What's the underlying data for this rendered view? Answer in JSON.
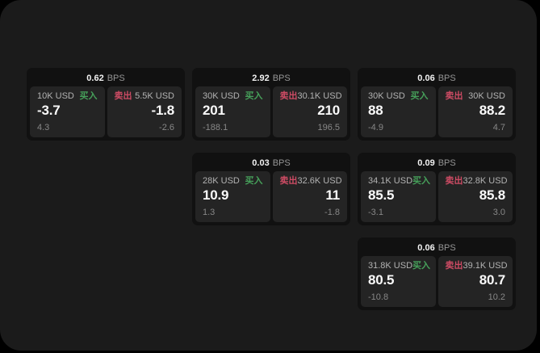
{
  "labels": {
    "bps": "BPS",
    "buy": "买入",
    "sell": "卖出"
  },
  "colors": {
    "buy_green": "#46a05a",
    "sell_red": "#cd4b64",
    "page_surface": "#1b1b1b",
    "card_bg": "#111111",
    "panel_bg": "#242424"
  },
  "cards": [
    {
      "row": 1,
      "col": 1,
      "bps": "0.62",
      "buy": {
        "size": "10K USD",
        "value": "-3.7",
        "delta": "4.3"
      },
      "sell": {
        "size": "5.5K USD",
        "value": "-1.8",
        "delta": "-2.6"
      }
    },
    {
      "row": 1,
      "col": 2,
      "bps": "2.92",
      "buy": {
        "size": "30K USD",
        "value": "201",
        "delta": "-188.1"
      },
      "sell": {
        "size": "30.1K USD",
        "value": "210",
        "delta": "196.5"
      }
    },
    {
      "row": 1,
      "col": 3,
      "bps": "0.06",
      "buy": {
        "size": "30K USD",
        "value": "88",
        "delta": "-4.9"
      },
      "sell": {
        "size": "30K USD",
        "value": "88.2",
        "delta": "4.7"
      }
    },
    {
      "row": 2,
      "col": 2,
      "bps": "0.03",
      "buy": {
        "size": "28K USD",
        "value": "10.9",
        "delta": "1.3"
      },
      "sell": {
        "size": "32.6K USD",
        "value": "11",
        "delta": "-1.8"
      }
    },
    {
      "row": 2,
      "col": 3,
      "bps": "0.09",
      "buy": {
        "size": "34.1K USD",
        "value": "85.5",
        "delta": "-3.1"
      },
      "sell": {
        "size": "32.8K USD",
        "value": "85.8",
        "delta": "3.0"
      }
    },
    {
      "row": 3,
      "col": 3,
      "bps": "0.06",
      "buy": {
        "size": "31.8K USD",
        "value": "80.5",
        "delta": "-10.8"
      },
      "sell": {
        "size": "39.1K USD",
        "value": "80.7",
        "delta": "10.2"
      }
    }
  ]
}
